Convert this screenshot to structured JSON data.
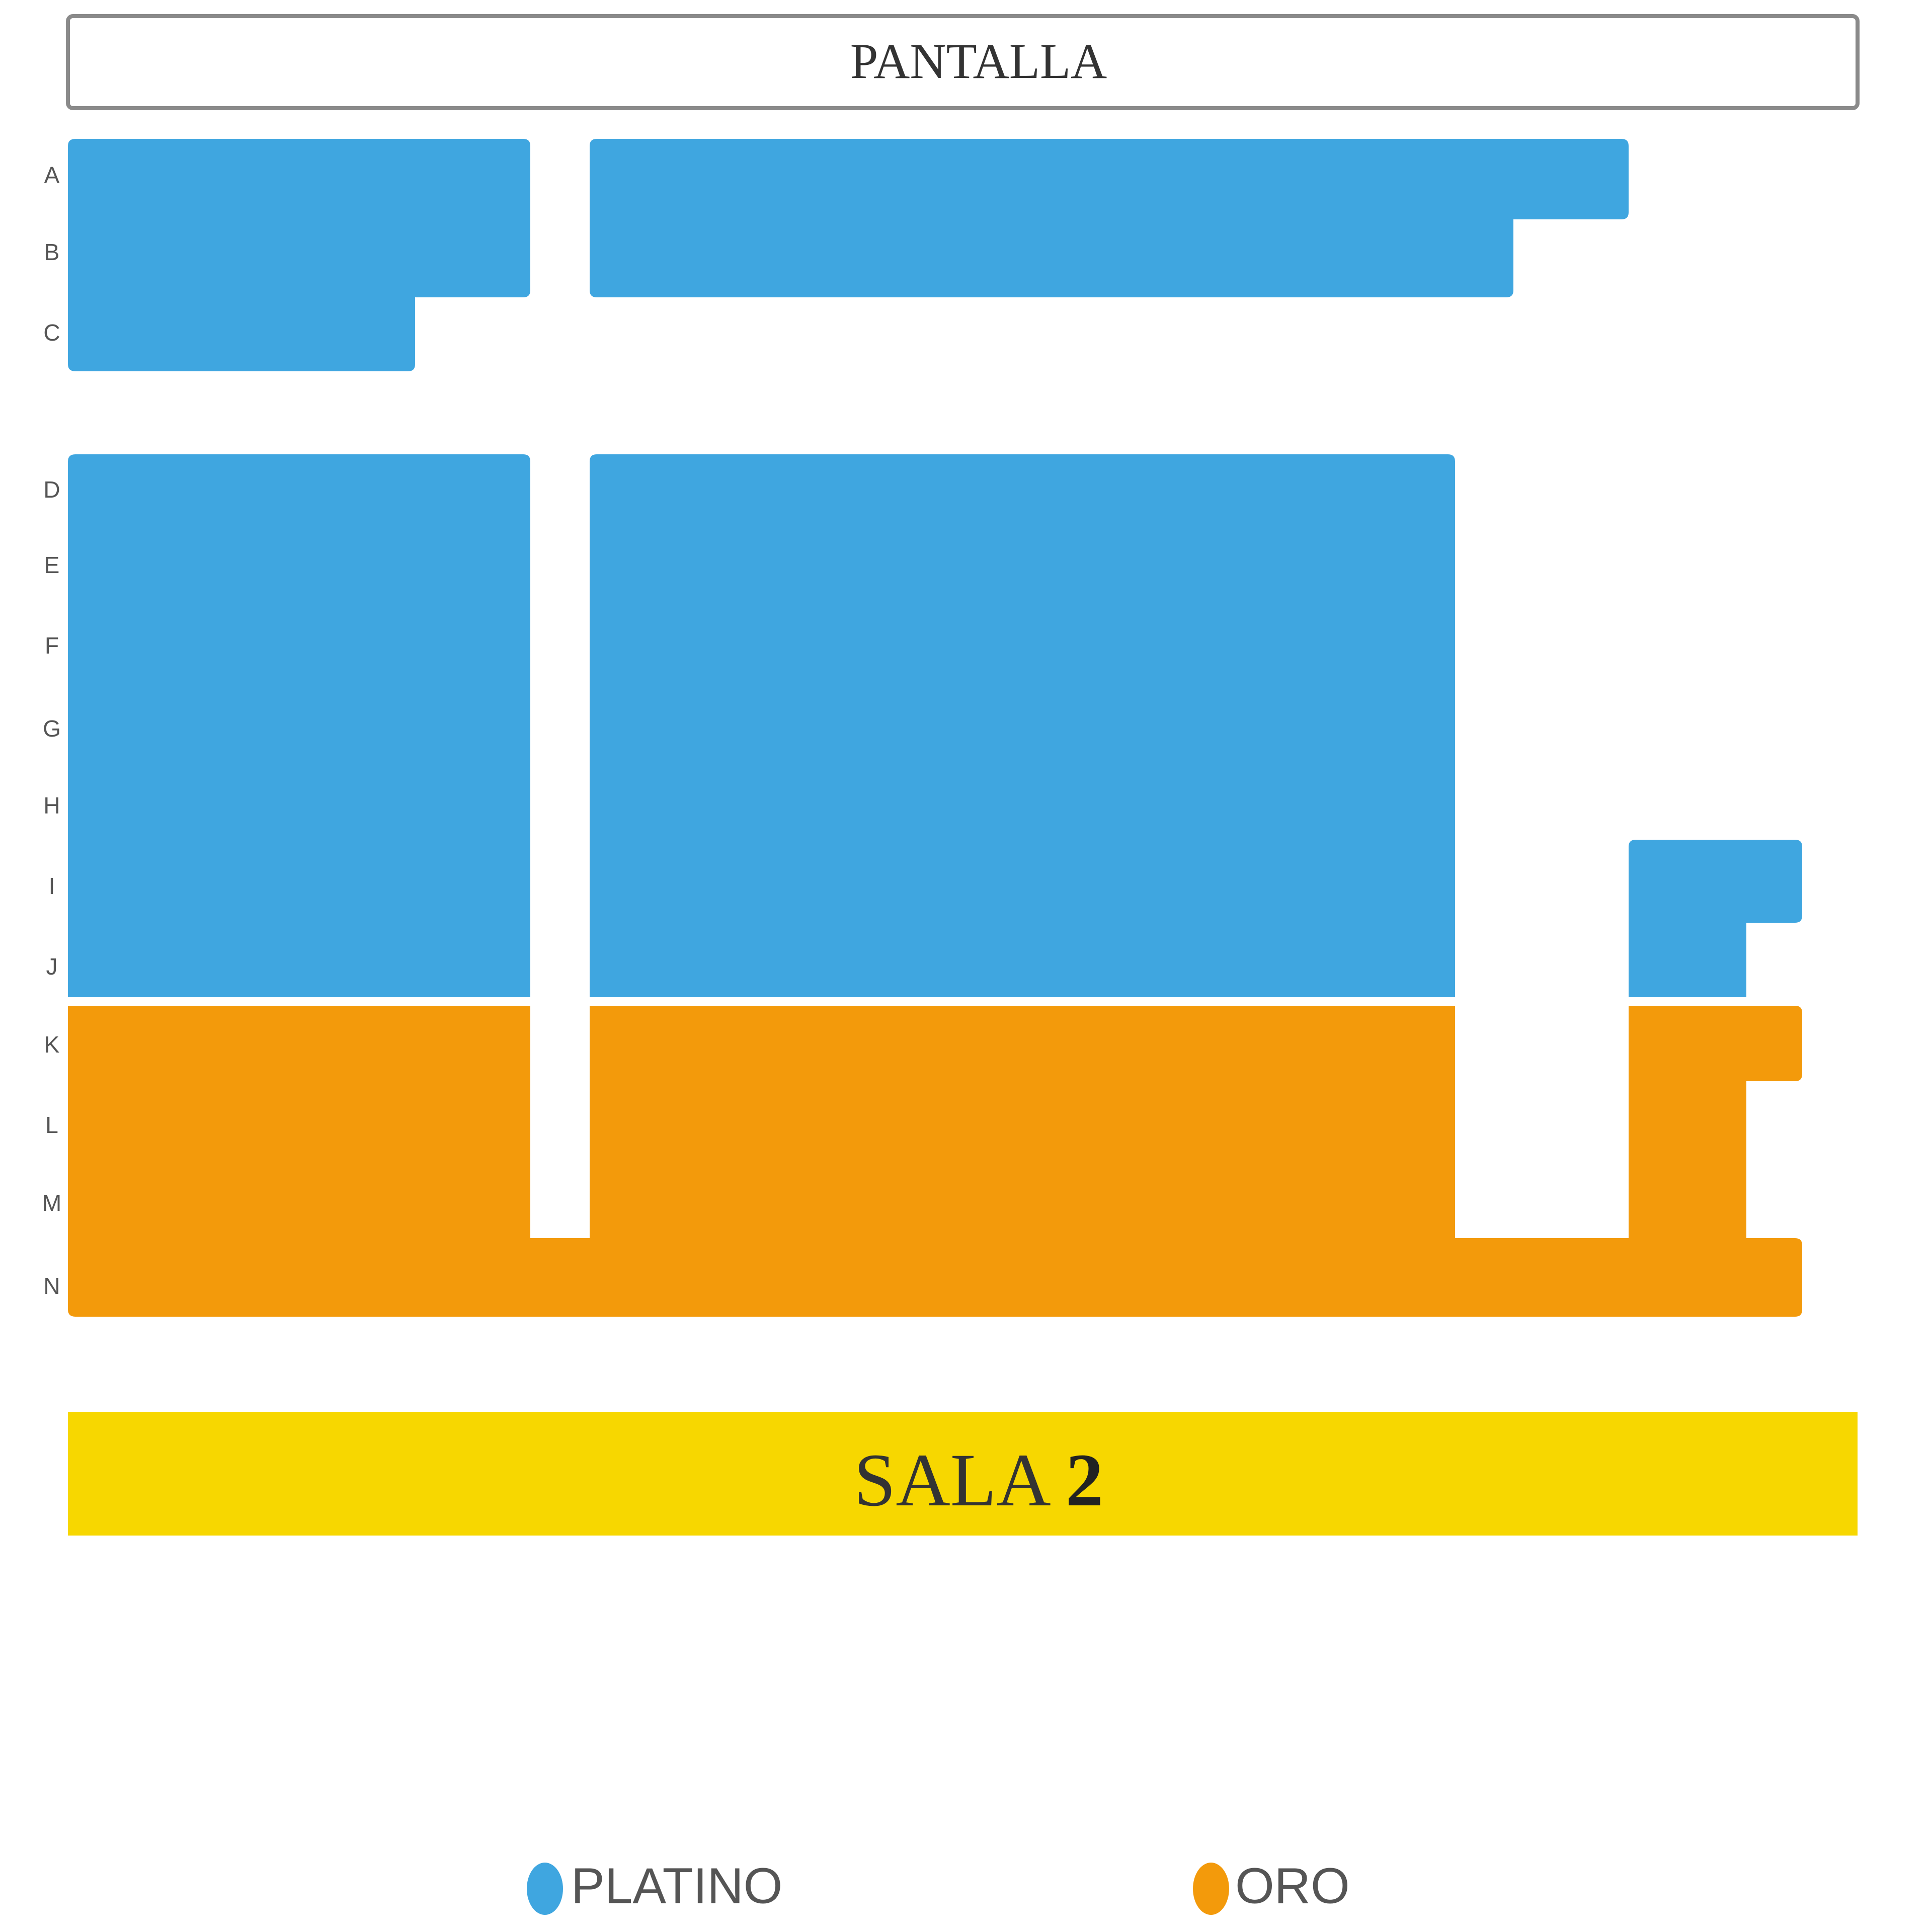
{
  "screen": {
    "label": "PANTALLA"
  },
  "rows": [
    "A",
    "B",
    "C",
    "D",
    "E",
    "F",
    "G",
    "H",
    "I",
    "J",
    "K",
    "L",
    "M",
    "N"
  ],
  "hall": {
    "name": "SALA",
    "number": "2"
  },
  "legend": [
    {
      "label": "PLATINO"
    },
    {
      "label": "ORO"
    }
  ]
}
